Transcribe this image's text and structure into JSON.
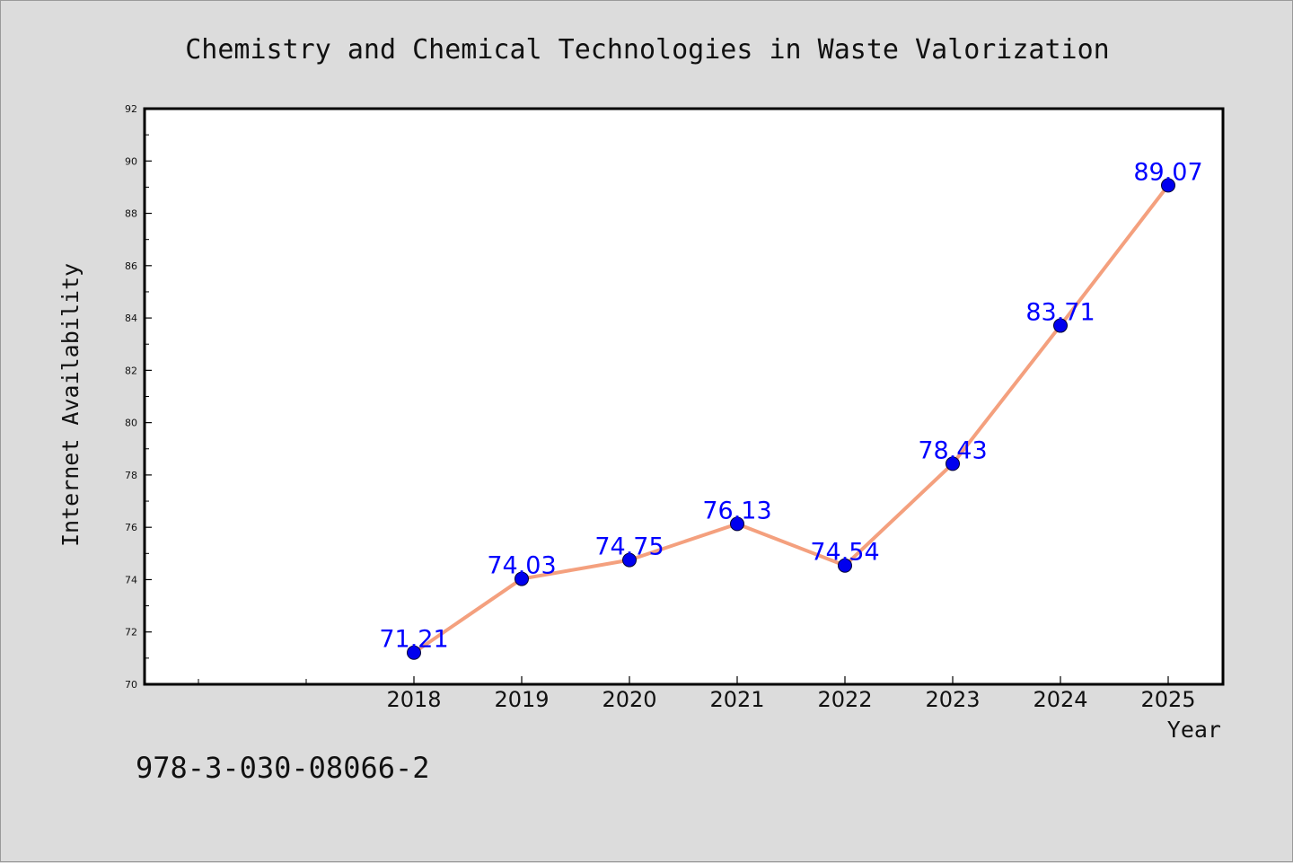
{
  "chart_data": {
    "type": "line",
    "title": "Chemistry and Chemical Technologies in Waste Valorization",
    "xlabel": "Year",
    "ylabel": "Internet Availability",
    "x": [
      "2018",
      "2019",
      "2020",
      "2021",
      "2022",
      "2023",
      "2024",
      "2025"
    ],
    "series": [
      {
        "values": [
          71.21,
          74.03,
          74.75,
          76.13,
          74.54,
          78.43,
          83.71,
          89.07
        ]
      }
    ],
    "data_labels": [
      "71.21",
      "74.03",
      "74.75",
      "76.13",
      "74.54",
      "78.43",
      "83.71",
      "89.07"
    ],
    "ylim": [
      70,
      92
    ],
    "yticks": [
      "70",
      "72",
      "74",
      "76",
      "78",
      "80",
      "82",
      "84",
      "86",
      "88",
      "90",
      "92"
    ],
    "grid": false,
    "legend": "none",
    "colors": {
      "line": "#f4a07e",
      "marker": "#0000ee",
      "label": "#0000ff"
    }
  },
  "footer": {
    "isbn": "978-3-030-08066-2"
  }
}
